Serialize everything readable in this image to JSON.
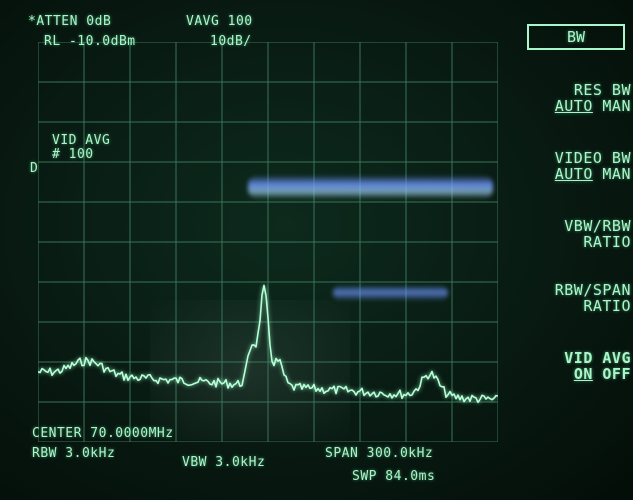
{
  "header": {
    "atten": "*ATTEN 0dB",
    "vavg": "VAVG 100",
    "rl": "RL -10.0dBm",
    "scale": "10dB/"
  },
  "annotations": {
    "vid_avg_label": "VID AVG",
    "vid_avg_count": "# 100",
    "detector": "D"
  },
  "footer": {
    "center": "CENTER 70.0000MHz",
    "rbw": "RBW 3.0kHz",
    "vbw": "VBW 3.0kHz",
    "span": "SPAN 300.0kHz",
    "swp": "SWP 84.0ms"
  },
  "softkeys": {
    "title": "BW",
    "res_bw_1": "RES BW",
    "res_bw_auto": "AUTO",
    "res_bw_man": "MAN",
    "video_bw_1": "VIDEO BW",
    "video_bw_auto": "AUTO",
    "video_bw_man": "MAN",
    "vbw_rbw_1": "VBW/RBW",
    "vbw_rbw_2": "RATIO",
    "rbw_span_1": "RBW/SPAN",
    "rbw_span_2": "RATIO",
    "vid_avg_1": "VID AVG",
    "vid_avg_on": "ON",
    "vid_avg_off": "OFF"
  },
  "colors": {
    "trace": "#b8ffd8",
    "grid": "#3f7d5e",
    "text": "#a8f7c8"
  }
}
